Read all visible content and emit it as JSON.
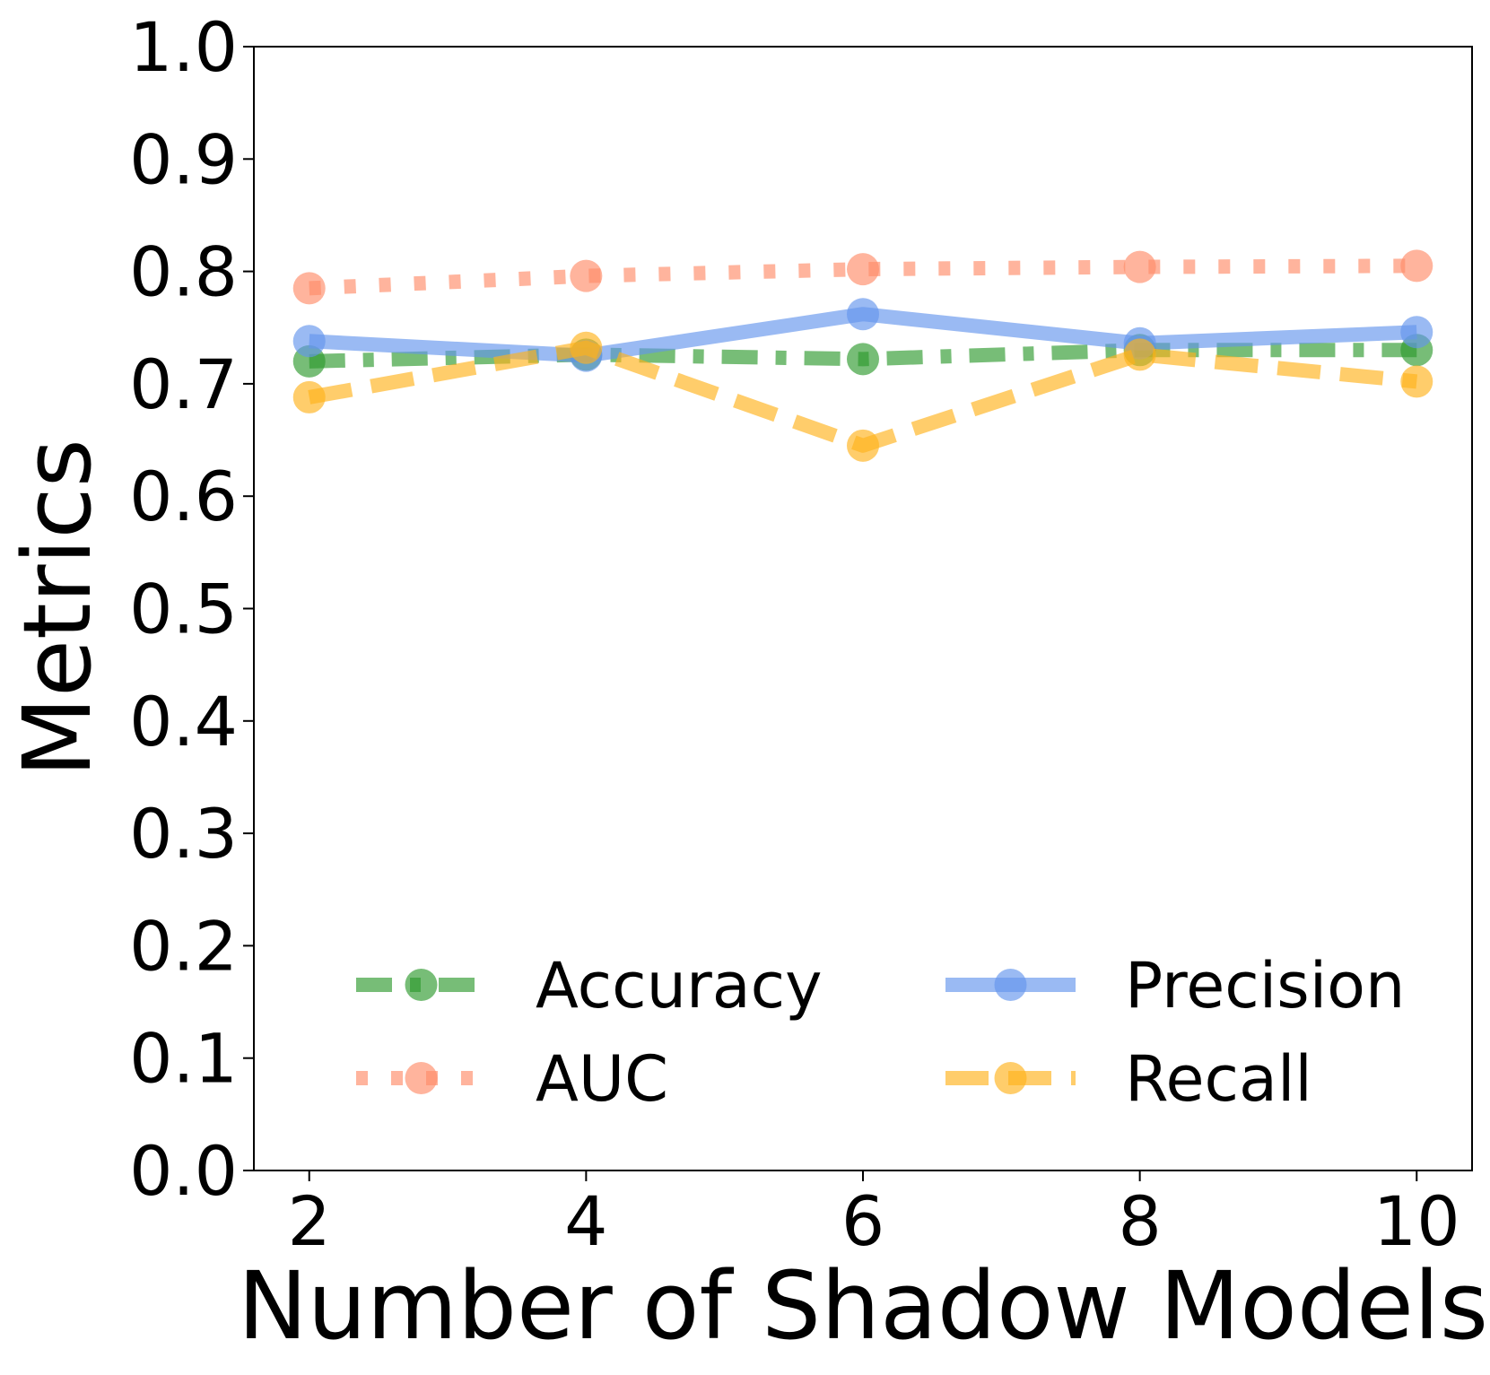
{
  "chart_data": {
    "type": "line",
    "xlabel": "Number of Shadow Models",
    "ylabel": "Metrics",
    "x": [
      2,
      4,
      6,
      8,
      10
    ],
    "xticks": [
      "2",
      "4",
      "6",
      "8",
      "10"
    ],
    "yticks": [
      "0.0",
      "0.1",
      "0.2",
      "0.3",
      "0.4",
      "0.5",
      "0.6",
      "0.7",
      "0.8",
      "0.9",
      "1.0"
    ],
    "xlim": [
      1.6,
      10.4
    ],
    "ylim": [
      0.0,
      1.0
    ],
    "grid": false,
    "legend_position": "lower-center",
    "series": [
      {
        "name": "Accuracy",
        "values": [
          0.72,
          0.726,
          0.722,
          0.73,
          0.73
        ],
        "color": "#2e9a2e",
        "linestyle": "dashdot"
      },
      {
        "name": "Precision",
        "values": [
          0.738,
          0.725,
          0.762,
          0.736,
          0.746
        ],
        "color": "#6495ed",
        "linestyle": "solid"
      },
      {
        "name": "AUC",
        "values": [
          0.785,
          0.796,
          0.802,
          0.804,
          0.805
        ],
        "color": "#ff8c69",
        "linestyle": "dotted"
      },
      {
        "name": "Recall",
        "values": [
          0.688,
          0.732,
          0.645,
          0.726,
          0.702
        ],
        "color": "#ffb21c",
        "linestyle": "dashed"
      }
    ]
  }
}
